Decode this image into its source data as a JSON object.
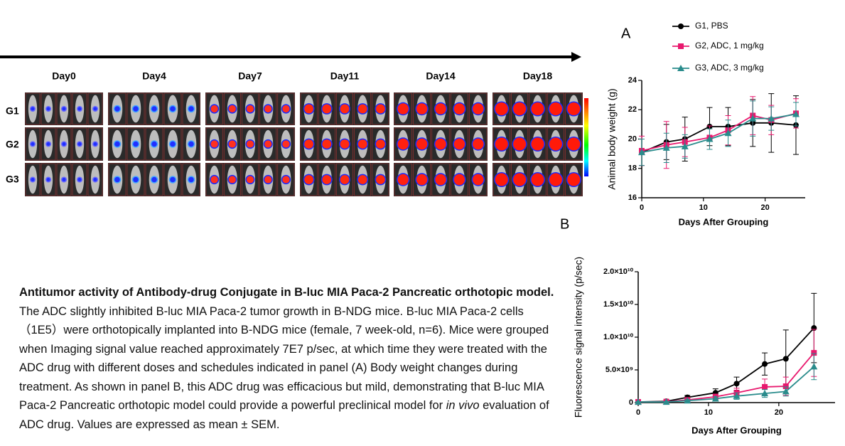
{
  "imaging": {
    "days": [
      "Day0",
      "Day4",
      "Day7",
      "Day11",
      "Day14",
      "Day18"
    ],
    "groups": [
      "G1",
      "G2",
      "G3"
    ]
  },
  "panels": [
    "A",
    "B"
  ],
  "caption": {
    "title": "Antitumor activity of Antibody-drug Conjugate in B-luc MIA Paca-2 Pancreatic orthotopic model.",
    "text_1": " The ADC slightly inhibited B-luc MIA Paca-2  tumor growth in B-NDG mice. B-luc MIA Paca-2 cells  （1E5）were orthotopically implanted into B-NDG mice (female, 7 week-old, n=6). Mice were grouped when Imaging signal value reached approximately 7E7 p/sec, at which time they were treated with the ADC drug with different doses and schedules indicated in panel (A) Body weight changes during treatment. As shown in panel B, this ADC drug was efficacious but mild, demonstrating that B-luc MIA Paca-2 Pancreatic orthotopic model could provide a powerful preclinical model for ",
    "italic": "in vivo",
    "text_2": " evaluation of ADC drug. Values are expressed as mean ± SEM."
  },
  "chart_data": [
    {
      "type": "line",
      "x_label": "Days After Grouping",
      "y_label": "Animal body weight (g)",
      "x": [
        0,
        4,
        7,
        11,
        14,
        18,
        21,
        25
      ],
      "xlim": [
        0,
        26.5
      ],
      "xticks": [
        0,
        10,
        20
      ],
      "ylim": [
        16,
        24
      ],
      "yticks": [
        16,
        18,
        20,
        22,
        24
      ],
      "series": [
        {
          "name": "G1, PBS",
          "color": "#000000",
          "marker": "circle",
          "values": [
            19.1,
            19.8,
            20.0,
            20.85,
            20.85,
            21.1,
            21.1,
            20.95
          ],
          "errors": [
            0.9,
            1.2,
            1.5,
            1.3,
            1.3,
            1.6,
            2.0,
            2.0
          ]
        },
        {
          "name": "G2, ADC, 1 mg/kg",
          "color": "#e8196e",
          "marker": "square",
          "values": [
            19.2,
            19.6,
            19.8,
            20.1,
            20.6,
            21.6,
            21.3,
            21.75
          ],
          "errors": [
            1.0,
            1.6,
            1.0,
            0.8,
            1.0,
            1.3,
            1.0,
            1.0
          ]
        },
        {
          "name": "G3, ADC, 3 mg/kg",
          "color": "#2a8c8c",
          "marker": "triangle",
          "values": [
            19.1,
            19.4,
            19.5,
            20.0,
            20.4,
            21.4,
            21.4,
            21.7
          ],
          "errors": [
            0.9,
            1.0,
            0.8,
            0.7,
            0.9,
            1.2,
            0.8,
            0.8
          ]
        }
      ]
    },
    {
      "type": "line",
      "x_label": "Days After Grouping",
      "y_label": "Fluorescence signal intensity (p/sec)",
      "x": [
        0,
        4,
        7,
        11,
        14,
        18,
        21,
        25
      ],
      "xlim": [
        0,
        28
      ],
      "xticks": [
        0,
        10,
        20
      ],
      "ylim": [
        0,
        20000000000
      ],
      "yticks": [
        0,
        {
          "value": 5000000000,
          "label": "5.0×10⁹"
        },
        {
          "value": 10000000000,
          "label": "1.0×10¹⁰"
        },
        {
          "value": 15000000000,
          "label": "1.5×10¹⁰"
        },
        {
          "value": 20000000000,
          "label": "2.0×10¹⁰"
        }
      ],
      "series": [
        {
          "color": "#000000",
          "marker": "circle",
          "values": [
            100000000,
            200000000,
            800000000,
            1500000000,
            2900000000,
            5900000000,
            6700000000,
            11400000000
          ],
          "errors": [
            50000000,
            100000000,
            300000000,
            600000000,
            1000000000,
            1700000000,
            4400000000,
            5300000000
          ]
        },
        {
          "color": "#e8196e",
          "marker": "square",
          "values": [
            100000000,
            150000000,
            400000000,
            900000000,
            1500000000,
            2400000000,
            2500000000,
            7600000000
          ],
          "errors": [
            50000000,
            80000000,
            200000000,
            400000000,
            700000000,
            1200000000,
            1400000000,
            3600000000
          ]
        },
        {
          "color": "#2a8c8c",
          "marker": "triangle",
          "values": [
            100000000,
            100000000,
            300000000,
            600000000,
            1000000000,
            1400000000,
            1700000000,
            5500000000
          ],
          "errors": [
            50000000,
            60000000,
            150000000,
            300000000,
            500000000,
            600000000,
            700000000,
            2000000000
          ]
        }
      ]
    }
  ]
}
